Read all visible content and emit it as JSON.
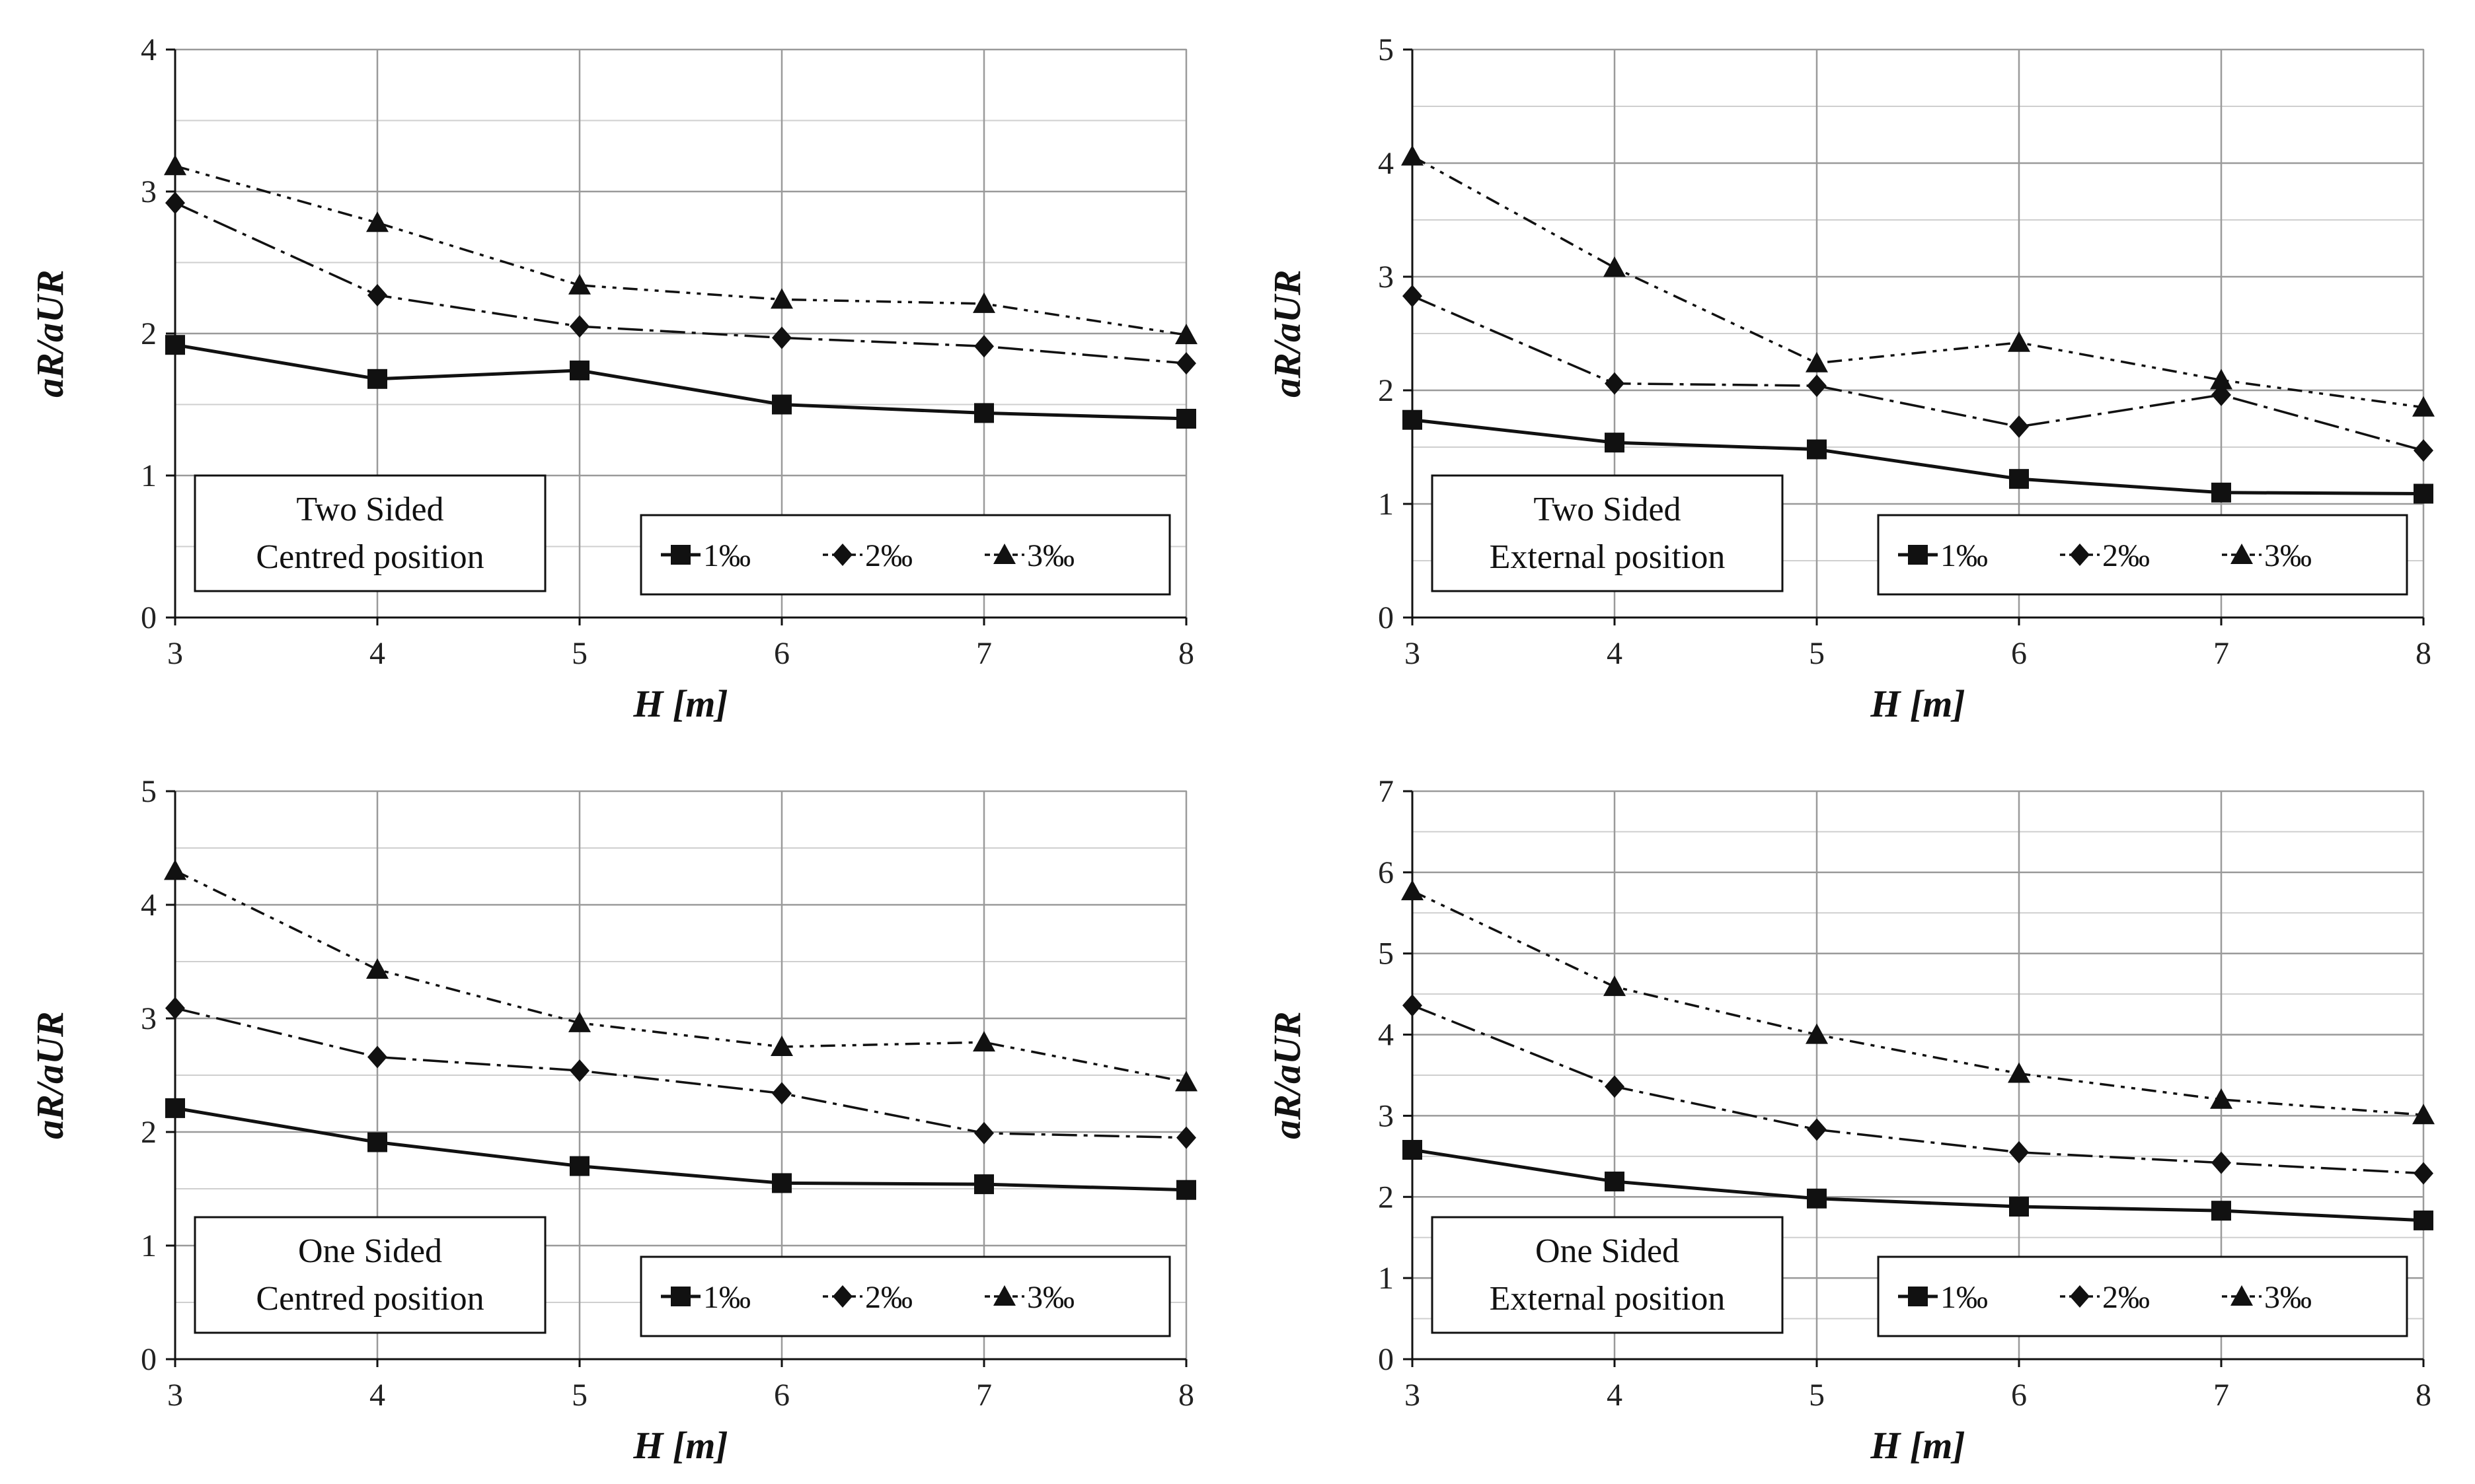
{
  "chart_data": [
    {
      "type": "line",
      "caption": [
        "Two Sided",
        "Centred  position"
      ],
      "xlabel": "H [m]",
      "ylabel": "aR/aUR",
      "x": [
        3,
        4,
        5,
        6,
        7,
        8
      ],
      "xlim": [
        3,
        8
      ],
      "ylim": [
        0,
        4
      ],
      "yticks": [
        0,
        1,
        2,
        3,
        4
      ],
      "xticks": [
        3,
        4,
        5,
        6,
        7,
        8
      ],
      "legend_position": "bottom-right",
      "series": [
        {
          "name": "1‰",
          "marker": "square",
          "values": [
            1.92,
            1.68,
            1.74,
            1.5,
            1.44,
            1.4
          ]
        },
        {
          "name": "2‰",
          "marker": "diamond",
          "values": [
            2.92,
            2.27,
            2.05,
            1.97,
            1.91,
            1.79
          ]
        },
        {
          "name": "3‰",
          "marker": "triangle",
          "values": [
            3.18,
            2.78,
            2.34,
            2.24,
            2.21,
            1.99
          ]
        }
      ]
    },
    {
      "type": "line",
      "caption": [
        "Two Sided",
        "External position"
      ],
      "xlabel": "H [m]",
      "ylabel": "aR/aUR",
      "x": [
        3,
        4,
        5,
        6,
        7,
        8
      ],
      "xlim": [
        3,
        8
      ],
      "ylim": [
        0,
        5
      ],
      "yticks": [
        0,
        1,
        2,
        3,
        4,
        5
      ],
      "xticks": [
        3,
        4,
        5,
        6,
        7,
        8
      ],
      "legend_position": "bottom-right",
      "series": [
        {
          "name": "1‰",
          "marker": "square",
          "values": [
            1.74,
            1.54,
            1.48,
            1.22,
            1.1,
            1.09
          ]
        },
        {
          "name": "2‰",
          "marker": "diamond",
          "values": [
            2.83,
            2.06,
            2.04,
            1.68,
            1.96,
            1.47
          ]
        },
        {
          "name": "3‰",
          "marker": "triangle",
          "values": [
            4.06,
            3.08,
            2.24,
            2.42,
            2.09,
            1.85
          ]
        }
      ]
    },
    {
      "type": "line",
      "caption": [
        "One Sided",
        "Centred  position"
      ],
      "xlabel": "H [m]",
      "ylabel": "aR/aUR",
      "x": [
        3,
        4,
        5,
        6,
        7,
        8
      ],
      "xlim": [
        3,
        8
      ],
      "ylim": [
        0,
        5
      ],
      "yticks": [
        0,
        1,
        2,
        3,
        4,
        5
      ],
      "xticks": [
        3,
        4,
        5,
        6,
        7,
        8
      ],
      "legend_position": "bottom-right",
      "series": [
        {
          "name": "1‰",
          "marker": "square",
          "values": [
            2.21,
            1.91,
            1.7,
            1.55,
            1.54,
            1.49
          ]
        },
        {
          "name": "2‰",
          "marker": "diamond",
          "values": [
            3.09,
            2.66,
            2.54,
            2.34,
            1.99,
            1.95
          ]
        },
        {
          "name": "3‰",
          "marker": "triangle",
          "values": [
            4.3,
            3.43,
            2.96,
            2.75,
            2.79,
            2.44
          ]
        }
      ]
    },
    {
      "type": "line",
      "caption": [
        "One Sided",
        "External position"
      ],
      "xlabel": "H [m]",
      "ylabel": "aR/aUR",
      "x": [
        3,
        4,
        5,
        6,
        7,
        8
      ],
      "xlim": [
        3,
        8
      ],
      "ylim": [
        0,
        7
      ],
      "yticks": [
        0,
        1,
        2,
        3,
        4,
        5,
        6,
        7
      ],
      "xticks": [
        3,
        4,
        5,
        6,
        7,
        8
      ],
      "legend_position": "bottom-right",
      "series": [
        {
          "name": "1‰",
          "marker": "square",
          "values": [
            2.58,
            2.19,
            1.98,
            1.88,
            1.83,
            1.71
          ]
        },
        {
          "name": "2‰",
          "marker": "diamond",
          "values": [
            4.36,
            3.36,
            2.83,
            2.55,
            2.42,
            2.29
          ]
        },
        {
          "name": "3‰",
          "marker": "triangle",
          "values": [
            5.77,
            4.59,
            4.0,
            3.52,
            3.2,
            3.01
          ]
        }
      ]
    }
  ]
}
